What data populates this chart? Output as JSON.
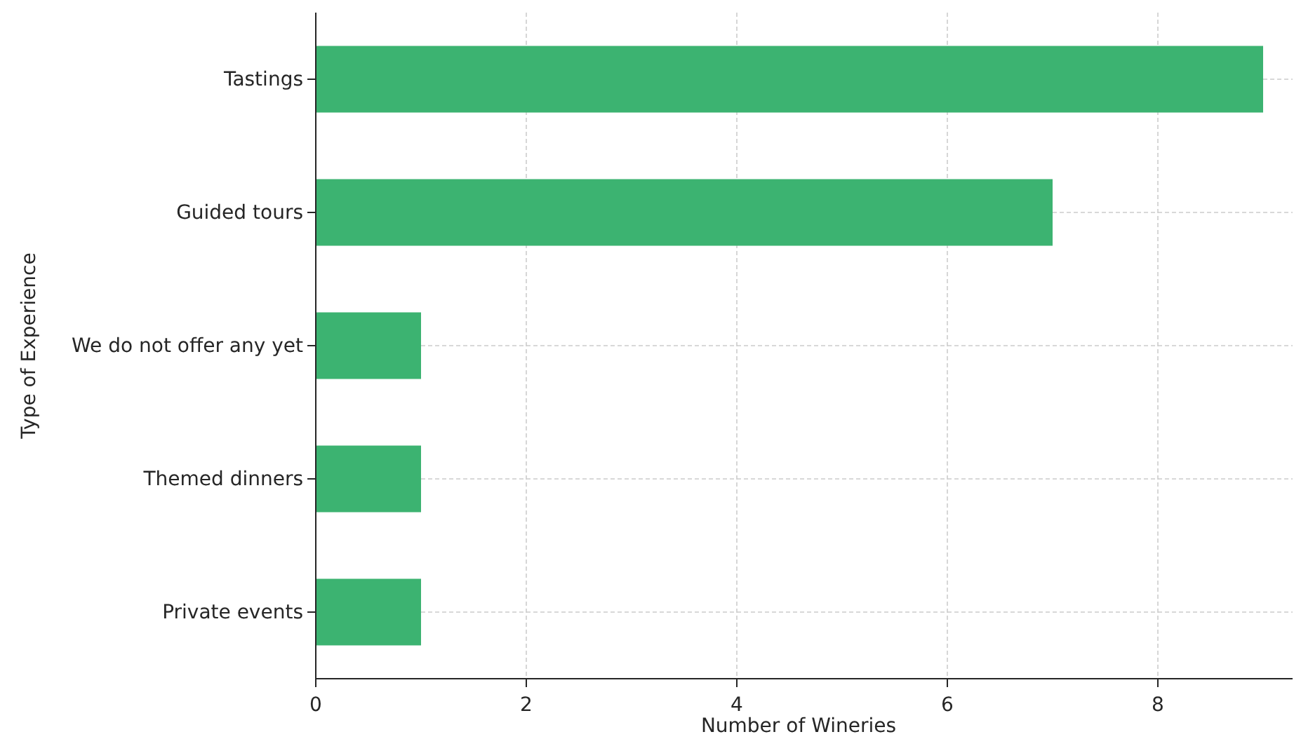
{
  "chart_data": {
    "type": "bar",
    "orientation": "horizontal",
    "xlabel": "Number of Wineries",
    "ylabel": "Type of Experience",
    "categories": [
      "Tastings",
      "Guided tours",
      "We do not offer any yet",
      "Themed dinners",
      "Private events"
    ],
    "values": [
      9,
      7,
      1,
      1,
      1
    ],
    "color": "#3cb371",
    "xlim": [
      0,
      9.28
    ],
    "xticks": [
      0,
      2,
      4,
      6,
      8
    ],
    "grid": true
  }
}
